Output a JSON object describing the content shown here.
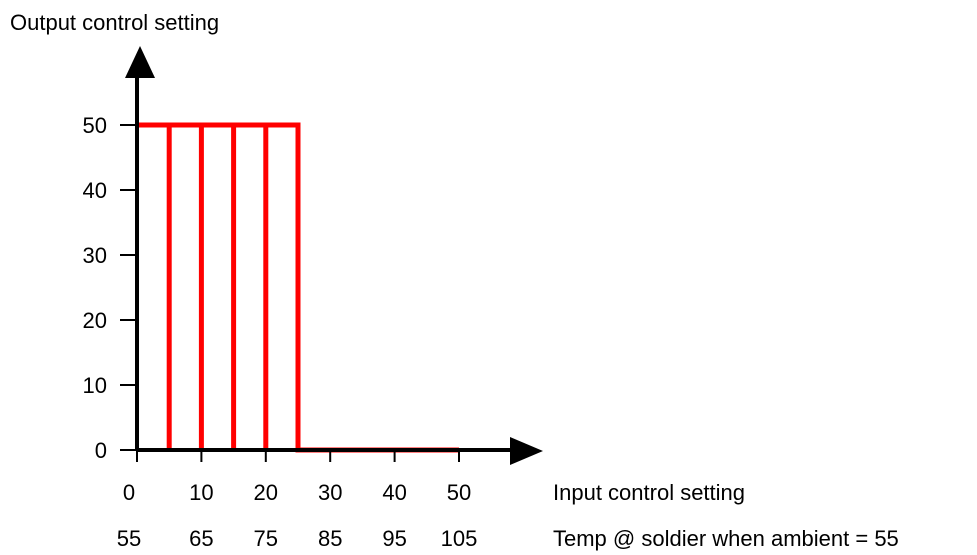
{
  "chart_data": {
    "type": "line",
    "title": "",
    "ylabel": "Output control setting",
    "xlabel": "Input control setting",
    "secondary_xlabel": "Temp @ soldier when ambient = 55",
    "x_ticks": [
      "0",
      "10",
      "20",
      "30",
      "40",
      "50"
    ],
    "x_tick_values": [
      0,
      10,
      20,
      30,
      40,
      50
    ],
    "secondary_x_ticks": [
      "55",
      "65",
      "75",
      "85",
      "95",
      "105"
    ],
    "y_ticks": [
      "0",
      "10",
      "20",
      "30",
      "40",
      "50"
    ],
    "y_tick_values": [
      0,
      10,
      20,
      30,
      40,
      50
    ],
    "xlim": [
      0,
      50
    ],
    "ylim": [
      0,
      50
    ],
    "grid": false,
    "series": [
      {
        "color": "#ff0000",
        "points": [
          [
            0,
            50
          ],
          [
            25,
            50
          ],
          [
            25,
            0
          ],
          [
            50,
            0
          ]
        ],
        "vertical_lines_x": [
          5,
          10,
          15,
          20
        ]
      }
    ],
    "axis_color": "#000000"
  }
}
